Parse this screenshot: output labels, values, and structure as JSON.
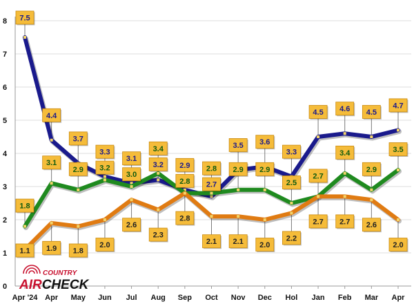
{
  "logo": {
    "top": "COUNTRY",
    "main_left": "AIR",
    "main_right": "CHECK",
    "color": "#c8102e"
  },
  "chart_data": {
    "type": "line",
    "categories": [
      "Apr '24",
      "Apr",
      "May",
      "Jun",
      "Jul",
      "Aug",
      "Sep",
      "Oct",
      "Nov",
      "Dec",
      "Hol",
      "Jan",
      "Feb",
      "Mar",
      "Apr"
    ],
    "ylim": [
      0,
      8
    ],
    "yticks": [
      0,
      1,
      2,
      3,
      4,
      5,
      6,
      7,
      8
    ],
    "grid": true,
    "series": [
      {
        "color": "#1a1a8c",
        "label_bg": "#f5bc3a",
        "label_color": "#1a1a8c",
        "values": [
          7.5,
          4.4,
          3.7,
          3.3,
          3.1,
          3.2,
          2.9,
          2.7,
          3.5,
          3.6,
          3.3,
          4.5,
          4.6,
          4.5,
          4.7
        ],
        "label_values": [
          7.5,
          4.4,
          3.7,
          3.3,
          3.1,
          3.2,
          2.9,
          2.7,
          3.5,
          3.6,
          3.3,
          4.5,
          4.6,
          4.5,
          4.7
        ]
      },
      {
        "color": "#1f8a1f",
        "label_bg": "#f5bc3a",
        "label_color": "#0f5a0f",
        "values": [
          1.8,
          3.1,
          2.9,
          3.2,
          3.0,
          3.4,
          2.8,
          2.8,
          2.9,
          2.9,
          2.5,
          2.7,
          3.4,
          2.9,
          3.5
        ],
        "label_values": [
          1.8,
          3.1,
          2.9,
          3.2,
          3.0,
          3.4,
          2.8,
          2.8,
          2.9,
          2.9,
          2.5,
          2.7,
          3.4,
          2.9,
          3.5
        ]
      },
      {
        "color": "#e07b12",
        "label_bg": "#f5bc3a",
        "label_color": "#222222",
        "values": [
          1.1,
          1.9,
          1.8,
          2.0,
          2.6,
          2.3,
          2.8,
          2.1,
          2.1,
          2.0,
          2.2,
          2.7,
          2.7,
          2.6,
          2.0
        ],
        "label_values": [
          1.1,
          1.9,
          1.8,
          2.0,
          2.6,
          2.3,
          2.8,
          2.1,
          2.1,
          2.0,
          2.2,
          2.7,
          2.7,
          2.6,
          2.0
        ]
      }
    ]
  }
}
